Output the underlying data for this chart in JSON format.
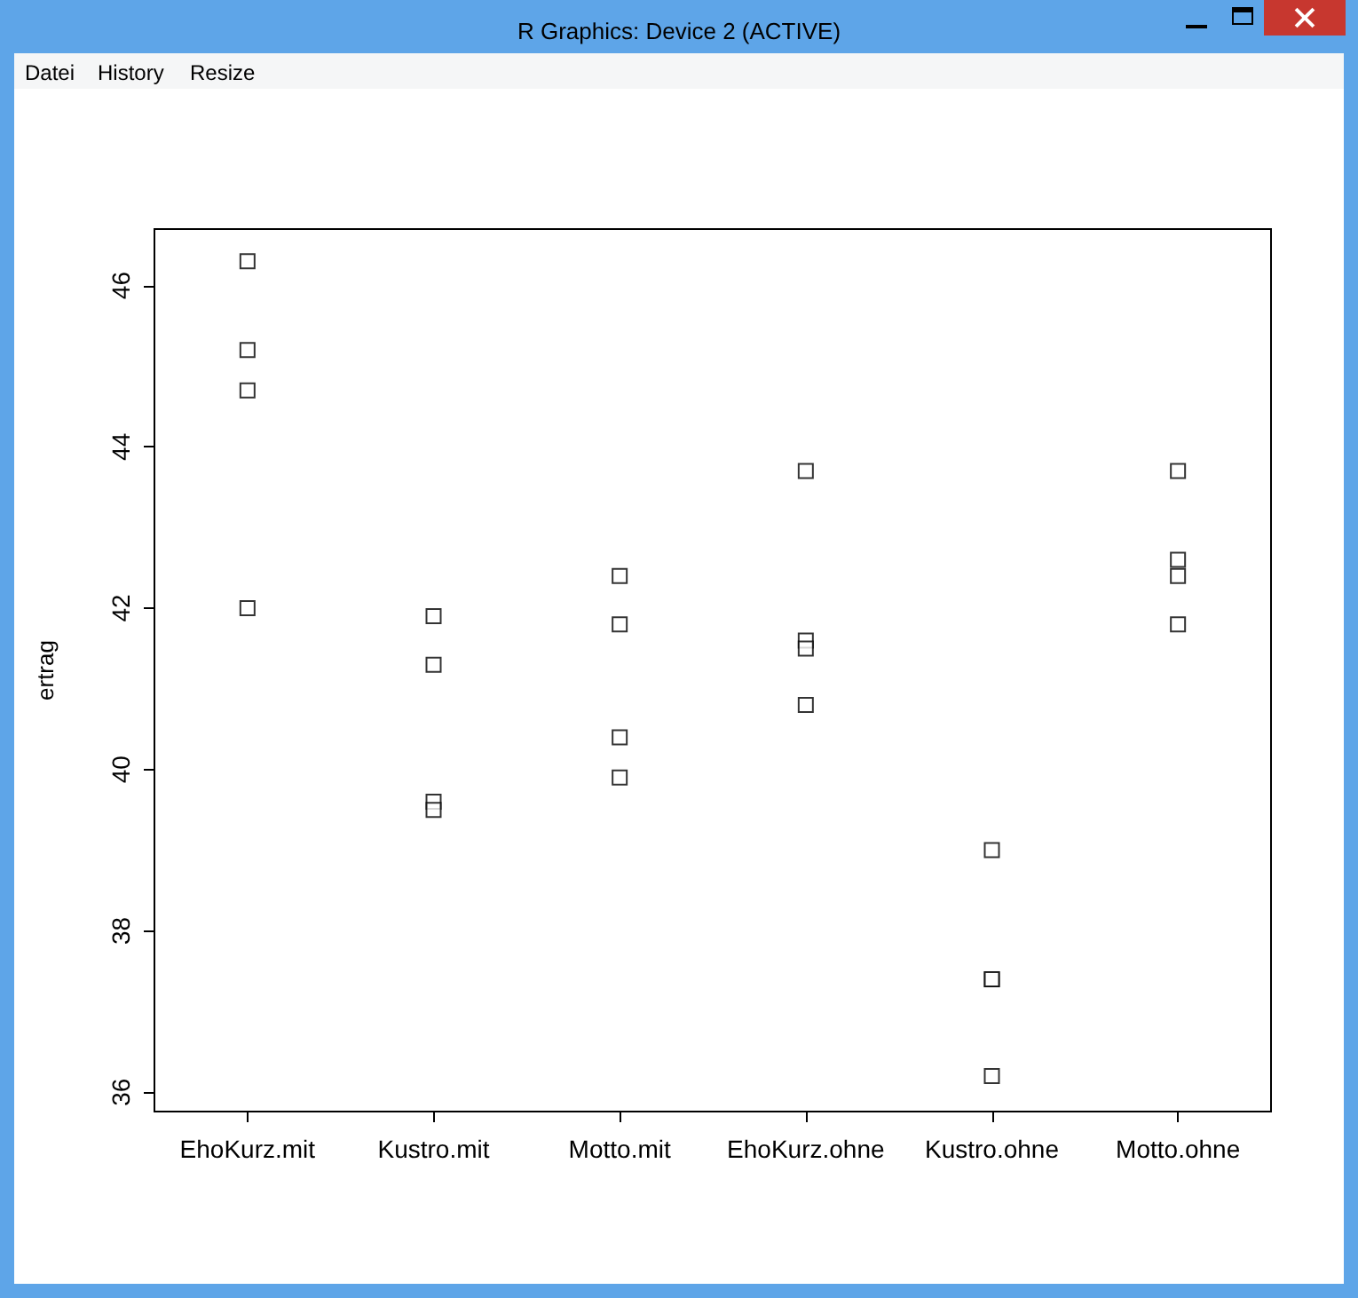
{
  "chart_data": {
    "type": "scatter",
    "title": "R Graphics: Device 2 (ACTIVE)",
    "ylabel": "ertrag",
    "annotations": [
      "Datei",
      "History",
      "Resize"
    ],
    "categories": [
      "EhoKurz.mit",
      "Kustro.mit",
      "Motto.mit",
      "EhoKurz.ohne",
      "Kustro.ohne",
      "Motto.ohne"
    ],
    "series": [
      {
        "color": "#000000",
        "x": [
          "EhoKurz.mit",
          "EhoKurz.mit",
          "EhoKurz.mit",
          "EhoKurz.mit",
          "Kustro.mit",
          "Kustro.mit",
          "Kustro.mit",
          "Kustro.mit",
          "Motto.mit",
          "Motto.mit",
          "Motto.mit",
          "Motto.mit",
          "EhoKurz.ohne",
          "EhoKurz.ohne",
          "EhoKurz.ohne",
          "EhoKurz.ohne",
          "Kustro.ohne",
          "Kustro.ohne",
          "Kustro.ohne",
          "Kustro.ohne",
          "Motto.ohne",
          "Motto.ohne",
          "Motto.ohne",
          "Motto.ohne"
        ],
        "values": [
          46.3,
          44.7,
          45.2,
          42.0,
          41.3,
          41.9,
          39.6,
          39.5,
          39.9,
          40.4,
          41.8,
          42.4,
          41.6,
          41.5,
          40.8,
          43.7,
          39.0,
          37.4,
          37.4,
          36.2,
          41.8,
          43.7,
          42.6,
          42.4
        ]
      }
    ],
    "ylim": [
      35.76,
      46.7
    ],
    "yticks": [
      36,
      38,
      40,
      42,
      44,
      46
    ],
    "marker": "square",
    "grid": false
  }
}
